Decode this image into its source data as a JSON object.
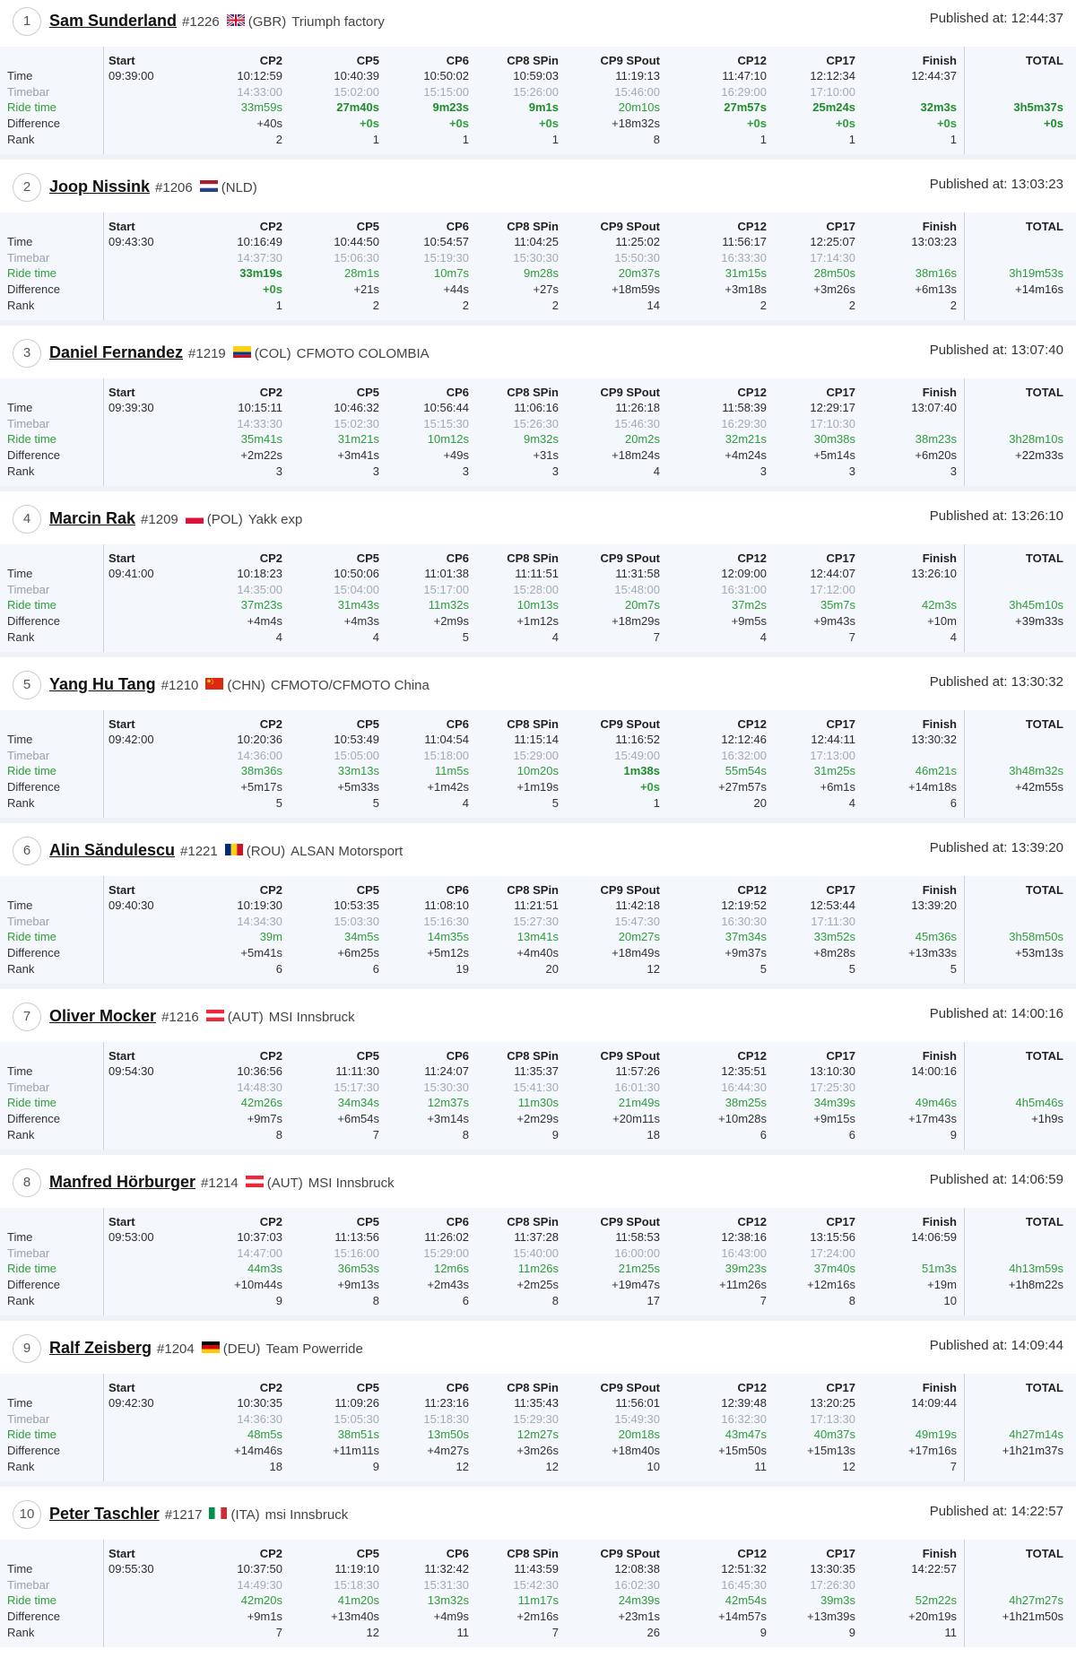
{
  "labels": {
    "time": "Time",
    "timebar": "Timebar",
    "ride_time": "Ride time",
    "difference": "Difference",
    "rank": "Rank",
    "start": "Start",
    "total": "TOTAL",
    "published_prefix": "Published at: "
  },
  "checkpoints": [
    "CP2",
    "CP5",
    "CP6",
    "CP8 SPin",
    "CP9 SPout",
    "CP12",
    "CP17",
    "Finish"
  ],
  "riders": [
    {
      "rank": "1",
      "name": "Sam Sunderland",
      "number": "#1226",
      "flag": "GBR",
      "country": "(GBR)",
      "team": "Triumph factory",
      "published": "Published at: 12:44:37",
      "start": "09:39:00",
      "time": [
        "10:12:59",
        "10:40:39",
        "10:50:02",
        "10:59:03",
        "11:19:13",
        "11:47:10",
        "12:12:34",
        "12:44:37"
      ],
      "timebar": [
        "14:33:00",
        "15:02:00",
        "15:15:00",
        "15:26:00",
        "15:46:00",
        "16:29:00",
        "17:10:00",
        ""
      ],
      "ride": [
        "33m59s",
        "27m40s",
        "9m23s",
        "9m1s",
        "20m10s",
        "27m57s",
        "25m24s",
        "32m3s"
      ],
      "ride_best": [
        false,
        true,
        true,
        true,
        false,
        true,
        true,
        true
      ],
      "diff": [
        "+40s",
        "+0s",
        "+0s",
        "+0s",
        "+18m32s",
        "+0s",
        "+0s",
        "+0s"
      ],
      "diff_green": [
        false,
        true,
        true,
        true,
        false,
        true,
        true,
        true
      ],
      "rankrow": [
        "2",
        "1",
        "1",
        "1",
        "8",
        "1",
        "1",
        "1"
      ],
      "total_ride": "3h5m37s",
      "total_best": true,
      "total_diff": "+0s",
      "total_diff_green": true
    },
    {
      "rank": "2",
      "name": "Joop Nissink",
      "number": "#1206",
      "flag": "NLD",
      "country": "(NLD)",
      "team": "",
      "published": "Published at: 13:03:23",
      "start": "09:43:30",
      "time": [
        "10:16:49",
        "10:44:50",
        "10:54:57",
        "11:04:25",
        "11:25:02",
        "11:56:17",
        "12:25:07",
        "13:03:23"
      ],
      "timebar": [
        "14:37:30",
        "15:06:30",
        "15:19:30",
        "15:30:30",
        "15:50:30",
        "16:33:30",
        "17:14:30",
        ""
      ],
      "ride": [
        "33m19s",
        "28m1s",
        "10m7s",
        "9m28s",
        "20m37s",
        "31m15s",
        "28m50s",
        "38m16s"
      ],
      "ride_best": [
        true,
        false,
        false,
        false,
        false,
        false,
        false,
        false
      ],
      "diff": [
        "+0s",
        "+21s",
        "+44s",
        "+27s",
        "+18m59s",
        "+3m18s",
        "+3m26s",
        "+6m13s"
      ],
      "diff_green": [
        true,
        false,
        false,
        false,
        false,
        false,
        false,
        false
      ],
      "rankrow": [
        "1",
        "2",
        "2",
        "2",
        "14",
        "2",
        "2",
        "2"
      ],
      "total_ride": "3h19m53s",
      "total_best": false,
      "total_diff": "+14m16s",
      "total_diff_green": false
    },
    {
      "rank": "3",
      "name": "Daniel Fernandez",
      "number": "#1219",
      "flag": "COL",
      "country": "(COL)",
      "team": "CFMOTO COLOMBIA",
      "published": "Published at: 13:07:40",
      "start": "09:39:30",
      "time": [
        "10:15:11",
        "10:46:32",
        "10:56:44",
        "11:06:16",
        "11:26:18",
        "11:58:39",
        "12:29:17",
        "13:07:40"
      ],
      "timebar": [
        "14:33:30",
        "15:02:30",
        "15:15:30",
        "15:26:30",
        "15:46:30",
        "16:29:30",
        "17:10:30",
        ""
      ],
      "ride": [
        "35m41s",
        "31m21s",
        "10m12s",
        "9m32s",
        "20m2s",
        "32m21s",
        "30m38s",
        "38m23s"
      ],
      "ride_best": [
        false,
        false,
        false,
        false,
        false,
        false,
        false,
        false
      ],
      "diff": [
        "+2m22s",
        "+3m41s",
        "+49s",
        "+31s",
        "+18m24s",
        "+4m24s",
        "+5m14s",
        "+6m20s"
      ],
      "diff_green": [
        false,
        false,
        false,
        false,
        false,
        false,
        false,
        false
      ],
      "rankrow": [
        "3",
        "3",
        "3",
        "3",
        "4",
        "3",
        "3",
        "3"
      ],
      "total_ride": "3h28m10s",
      "total_best": false,
      "total_diff": "+22m33s",
      "total_diff_green": false
    },
    {
      "rank": "4",
      "name": "Marcin Rak",
      "number": "#1209",
      "flag": "POL",
      "country": "(POL)",
      "team": "Yakk exp",
      "published": "Published at: 13:26:10",
      "start": "09:41:00",
      "time": [
        "10:18:23",
        "10:50:06",
        "11:01:38",
        "11:11:51",
        "11:31:58",
        "12:09:00",
        "12:44:07",
        "13:26:10"
      ],
      "timebar": [
        "14:35:00",
        "15:04:00",
        "15:17:00",
        "15:28:00",
        "15:48:00",
        "16:31:00",
        "17:12:00",
        ""
      ],
      "ride": [
        "37m23s",
        "31m43s",
        "11m32s",
        "10m13s",
        "20m7s",
        "37m2s",
        "35m7s",
        "42m3s"
      ],
      "ride_best": [
        false,
        false,
        false,
        false,
        false,
        false,
        false,
        false
      ],
      "diff": [
        "+4m4s",
        "+4m3s",
        "+2m9s",
        "+1m12s",
        "+18m29s",
        "+9m5s",
        "+9m43s",
        "+10m"
      ],
      "diff_green": [
        false,
        false,
        false,
        false,
        false,
        false,
        false,
        false
      ],
      "rankrow": [
        "4",
        "4",
        "5",
        "4",
        "7",
        "4",
        "7",
        "4"
      ],
      "total_ride": "3h45m10s",
      "total_best": false,
      "total_diff": "+39m33s",
      "total_diff_green": false
    },
    {
      "rank": "5",
      "name": "Yang Hu Tang",
      "number": "#1210",
      "flag": "CHN",
      "country": "(CHN)",
      "team": "CFMOTO/CFMOTO China",
      "published": "Published at: 13:30:32",
      "start": "09:42:00",
      "time": [
        "10:20:36",
        "10:53:49",
        "11:04:54",
        "11:15:14",
        "11:16:52",
        "12:12:46",
        "12:44:11",
        "13:30:32"
      ],
      "timebar": [
        "14:36:00",
        "15:05:00",
        "15:18:00",
        "15:29:00",
        "15:49:00",
        "16:32:00",
        "17:13:00",
        ""
      ],
      "ride": [
        "38m36s",
        "33m13s",
        "11m5s",
        "10m20s",
        "1m38s",
        "55m54s",
        "31m25s",
        "46m21s"
      ],
      "ride_best": [
        false,
        false,
        false,
        false,
        true,
        false,
        false,
        false
      ],
      "diff": [
        "+5m17s",
        "+5m33s",
        "+1m42s",
        "+1m19s",
        "+0s",
        "+27m57s",
        "+6m1s",
        "+14m18s"
      ],
      "diff_green": [
        false,
        false,
        false,
        false,
        true,
        false,
        false,
        false
      ],
      "rankrow": [
        "5",
        "5",
        "4",
        "5",
        "1",
        "20",
        "4",
        "6"
      ],
      "total_ride": "3h48m32s",
      "total_best": false,
      "total_diff": "+42m55s",
      "total_diff_green": false
    },
    {
      "rank": "6",
      "name": "Alin Săndulescu",
      "number": "#1221",
      "flag": "ROU",
      "country": "(ROU)",
      "team": "ALSAN Motorsport",
      "published": "Published at: 13:39:20",
      "start": "09:40:30",
      "time": [
        "10:19:30",
        "10:53:35",
        "11:08:10",
        "11:21:51",
        "11:42:18",
        "12:19:52",
        "12:53:44",
        "13:39:20"
      ],
      "timebar": [
        "14:34:30",
        "15:03:30",
        "15:16:30",
        "15:27:30",
        "15:47:30",
        "16:30:30",
        "17:11:30",
        ""
      ],
      "ride": [
        "39m",
        "34m5s",
        "14m35s",
        "13m41s",
        "20m27s",
        "37m34s",
        "33m52s",
        "45m36s"
      ],
      "ride_best": [
        false,
        false,
        false,
        false,
        false,
        false,
        false,
        false
      ],
      "diff": [
        "+5m41s",
        "+6m25s",
        "+5m12s",
        "+4m40s",
        "+18m49s",
        "+9m37s",
        "+8m28s",
        "+13m33s"
      ],
      "diff_green": [
        false,
        false,
        false,
        false,
        false,
        false,
        false,
        false
      ],
      "rankrow": [
        "6",
        "6",
        "19",
        "20",
        "12",
        "5",
        "5",
        "5"
      ],
      "total_ride": "3h58m50s",
      "total_best": false,
      "total_diff": "+53m13s",
      "total_diff_green": false
    },
    {
      "rank": "7",
      "name": "Oliver Mocker",
      "number": "#1216",
      "flag": "AUT",
      "country": "(AUT)",
      "team": "MSI Innsbruck",
      "published": "Published at: 14:00:16",
      "start": "09:54:30",
      "time": [
        "10:36:56",
        "11:11:30",
        "11:24:07",
        "11:35:37",
        "11:57:26",
        "12:35:51",
        "13:10:30",
        "14:00:16"
      ],
      "timebar": [
        "14:48:30",
        "15:17:30",
        "15:30:30",
        "15:41:30",
        "16:01:30",
        "16:44:30",
        "17:25:30",
        ""
      ],
      "ride": [
        "42m26s",
        "34m34s",
        "12m37s",
        "11m30s",
        "21m49s",
        "38m25s",
        "34m39s",
        "49m46s"
      ],
      "ride_best": [
        false,
        false,
        false,
        false,
        false,
        false,
        false,
        false
      ],
      "diff": [
        "+9m7s",
        "+6m54s",
        "+3m14s",
        "+2m29s",
        "+20m11s",
        "+10m28s",
        "+9m15s",
        "+17m43s"
      ],
      "diff_green": [
        false,
        false,
        false,
        false,
        false,
        false,
        false,
        false
      ],
      "rankrow": [
        "8",
        "7",
        "8",
        "9",
        "18",
        "6",
        "6",
        "9"
      ],
      "total_ride": "4h5m46s",
      "total_best": false,
      "total_diff": "+1h9s",
      "total_diff_green": false
    },
    {
      "rank": "8",
      "name": "Manfred Hörburger",
      "number": "#1214",
      "flag": "AUT",
      "country": "(AUT)",
      "team": "MSI Innsbruck",
      "published": "Published at: 14:06:59",
      "start": "09:53:00",
      "time": [
        "10:37:03",
        "11:13:56",
        "11:26:02",
        "11:37:28",
        "11:58:53",
        "12:38:16",
        "13:15:56",
        "14:06:59"
      ],
      "timebar": [
        "14:47:00",
        "15:16:00",
        "15:29:00",
        "15:40:00",
        "16:00:00",
        "16:43:00",
        "17:24:00",
        ""
      ],
      "ride": [
        "44m3s",
        "36m53s",
        "12m6s",
        "11m26s",
        "21m25s",
        "39m23s",
        "37m40s",
        "51m3s"
      ],
      "ride_best": [
        false,
        false,
        false,
        false,
        false,
        false,
        false,
        false
      ],
      "diff": [
        "+10m44s",
        "+9m13s",
        "+2m43s",
        "+2m25s",
        "+19m47s",
        "+11m26s",
        "+12m16s",
        "+19m"
      ],
      "diff_green": [
        false,
        false,
        false,
        false,
        false,
        false,
        false,
        false
      ],
      "rankrow": [
        "9",
        "8",
        "6",
        "8",
        "17",
        "7",
        "8",
        "10"
      ],
      "total_ride": "4h13m59s",
      "total_best": false,
      "total_diff": "+1h8m22s",
      "total_diff_green": false
    },
    {
      "rank": "9",
      "name": "Ralf Zeisberg",
      "number": "#1204",
      "flag": "DEU",
      "country": "(DEU)",
      "team": "Team Powerride",
      "published": "Published at: 14:09:44",
      "start": "09:42:30",
      "time": [
        "10:30:35",
        "11:09:26",
        "11:23:16",
        "11:35:43",
        "11:56:01",
        "12:39:48",
        "13:20:25",
        "14:09:44"
      ],
      "timebar": [
        "14:36:30",
        "15:05:30",
        "15:18:30",
        "15:29:30",
        "15:49:30",
        "16:32:30",
        "17:13:30",
        ""
      ],
      "ride": [
        "48m5s",
        "38m51s",
        "13m50s",
        "12m27s",
        "20m18s",
        "43m47s",
        "40m37s",
        "49m19s"
      ],
      "ride_best": [
        false,
        false,
        false,
        false,
        false,
        false,
        false,
        false
      ],
      "diff": [
        "+14m46s",
        "+11m11s",
        "+4m27s",
        "+3m26s",
        "+18m40s",
        "+15m50s",
        "+15m13s",
        "+17m16s"
      ],
      "diff_green": [
        false,
        false,
        false,
        false,
        false,
        false,
        false,
        false
      ],
      "rankrow": [
        "18",
        "9",
        "12",
        "12",
        "10",
        "11",
        "12",
        "7"
      ],
      "total_ride": "4h27m14s",
      "total_best": false,
      "total_diff": "+1h21m37s",
      "total_diff_green": false
    },
    {
      "rank": "10",
      "name": "Peter Taschler",
      "number": "#1217",
      "flag": "ITA",
      "country": "(ITA)",
      "team": "msi Innsbruck",
      "published": "Published at: 14:22:57",
      "start": "09:55:30",
      "time": [
        "10:37:50",
        "11:19:10",
        "11:32:42",
        "11:43:59",
        "12:08:38",
        "12:51:32",
        "13:30:35",
        "14:22:57"
      ],
      "timebar": [
        "14:49:30",
        "15:18:30",
        "15:31:30",
        "15:42:30",
        "16:02:30",
        "16:45:30",
        "17:26:30",
        ""
      ],
      "ride": [
        "42m20s",
        "41m20s",
        "13m32s",
        "11m17s",
        "24m39s",
        "42m54s",
        "39m3s",
        "52m22s"
      ],
      "ride_best": [
        false,
        false,
        false,
        false,
        false,
        false,
        false,
        false
      ],
      "diff": [
        "+9m1s",
        "+13m40s",
        "+4m9s",
        "+2m16s",
        "+23m1s",
        "+14m57s",
        "+13m39s",
        "+20m19s"
      ],
      "diff_green": [
        false,
        false,
        false,
        false,
        false,
        false,
        false,
        false
      ],
      "rankrow": [
        "7",
        "12",
        "11",
        "7",
        "26",
        "9",
        "9",
        "11"
      ],
      "total_ride": "4h27m27s",
      "total_best": false,
      "total_diff": "+1h21m50s",
      "total_diff_green": false
    }
  ]
}
